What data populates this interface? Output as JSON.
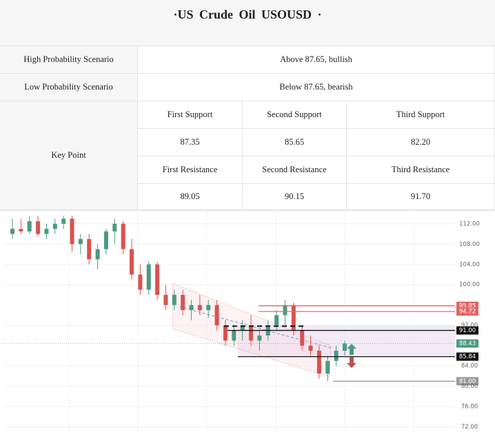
{
  "header": {
    "title": "·US  Crude  Oil  USOUSD ·"
  },
  "table": {
    "rows": [
      [
        "High Probability Scenario",
        "Above 87.65, bullish"
      ],
      [
        "Low Probability Scenario",
        "Below 87.65, bearish"
      ]
    ],
    "key_point": {
      "label": "Key Point",
      "support_headers": [
        "First  Support",
        "Second Support",
        "Third Support"
      ],
      "supports": [
        "87.35",
        "85.65",
        "82.20"
      ],
      "resistance_headers": [
        "First  Resistance",
        "Second  Resistance",
        "Third  Resistance"
      ],
      "resistances": [
        "89.05",
        "90.15",
        "91.70"
      ]
    }
  },
  "chart_data": {
    "type": "candlestick",
    "open": [
      110,
      111,
      110.5,
      112.5,
      110,
      111,
      112,
      113,
      108,
      109,
      105,
      107,
      110.5,
      112,
      107,
      102,
      99,
      104,
      98,
      96,
      98,
      95,
      96,
      95,
      96,
      92,
      89,
      91,
      92,
      89,
      90,
      92,
      94,
      96,
      91,
      88,
      87,
      82.5,
      85,
      87
    ],
    "high": [
      113,
      113,
      113.5,
      113.5,
      112,
      113,
      113.6,
      113.6,
      110,
      110,
      108,
      111,
      113,
      112.5,
      109,
      104,
      104.5,
      104.5,
      100,
      99,
      99,
      97,
      98,
      97,
      97,
      93,
      92,
      93,
      94,
      91,
      93,
      95,
      97,
      96.5,
      92,
      90,
      88,
      86,
      88,
      89
    ],
    "low": [
      109,
      110,
      110,
      109.5,
      109,
      110,
      111,
      106.5,
      106,
      104,
      103,
      106,
      108,
      106,
      101,
      98,
      98,
      97,
      95,
      95,
      94,
      93,
      94,
      93.5,
      91,
      88,
      88,
      89,
      88,
      87,
      89,
      91,
      92,
      90,
      87,
      86,
      81.5,
      81,
      84,
      86
    ],
    "close": [
      111,
      110.5,
      112.5,
      110,
      111,
      112,
      113,
      108,
      109,
      105,
      107,
      110.5,
      112,
      107,
      102,
      99,
      104,
      98,
      96,
      98,
      95,
      96,
      95,
      96,
      92,
      89,
      91,
      92,
      89,
      90,
      92,
      94,
      96,
      91,
      88,
      87,
      82.5,
      85,
      87,
      88.43
    ],
    "up_color": "#4a9a7f",
    "down_color": "#d9534f",
    "ylim": [
      71,
      113.6
    ],
    "yticks": [
      {
        "value": 72,
        "label": "72.00"
      },
      {
        "value": 76,
        "label": "76.00"
      },
      {
        "value": 80,
        "label": "80.00"
      },
      {
        "value": 84,
        "label": "84.00"
      },
      {
        "value": 92,
        "label": "92.00"
      },
      {
        "value": 100,
        "label": "100.00"
      },
      {
        "value": 104,
        "label": "104.00"
      },
      {
        "value": 108,
        "label": "108.00"
      },
      {
        "value": 112,
        "label": "112.00"
      }
    ],
    "grid": true,
    "levels": [
      {
        "value": 95.85,
        "color": "#e06666"
      },
      {
        "value": 94.72,
        "color": "#e06666"
      },
      {
        "value": 91,
        "label": "91.00",
        "color": "#111111"
      },
      {
        "value": 88.43,
        "color": "#4a9a7f"
      },
      {
        "value": 85.84,
        "color": "#111111"
      },
      {
        "value": 81,
        "label": "81.00",
        "color": "#999999"
      }
    ]
  }
}
